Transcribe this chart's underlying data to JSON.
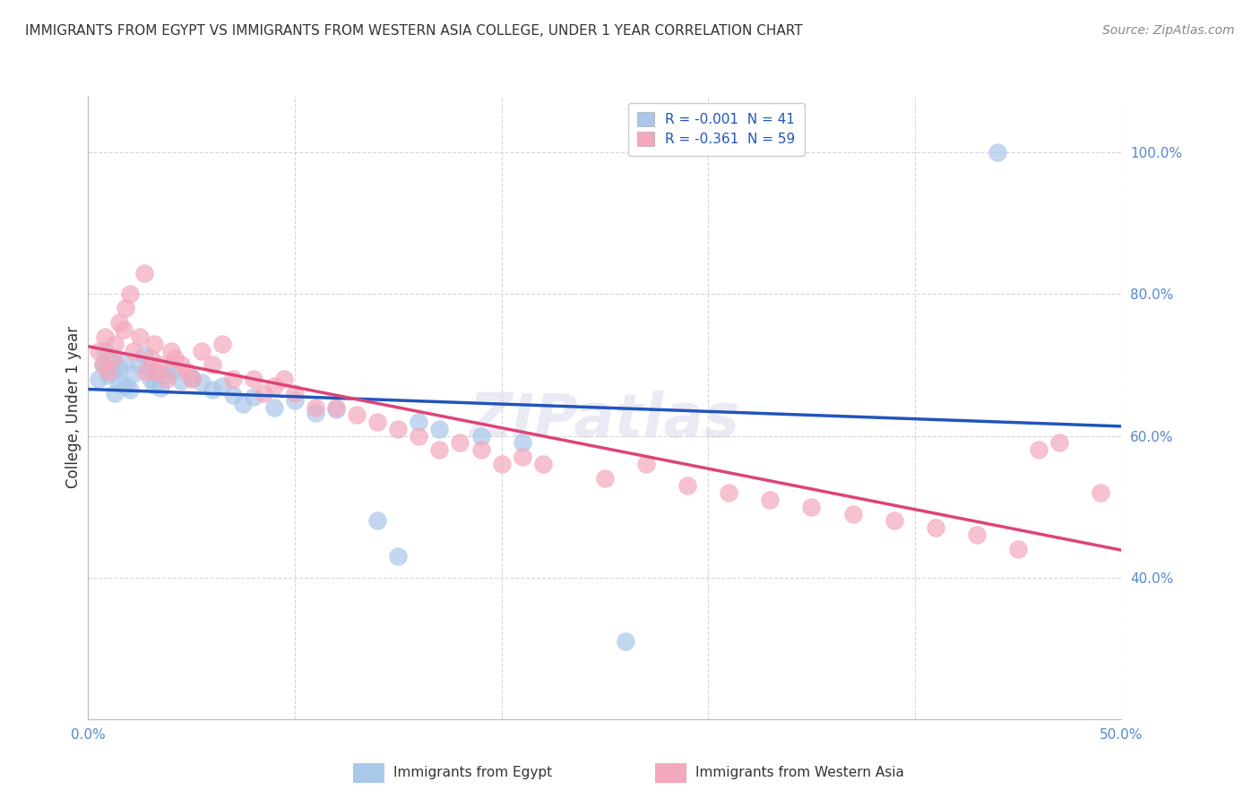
{
  "title": "IMMIGRANTS FROM EGYPT VS IMMIGRANTS FROM WESTERN ASIA COLLEGE, UNDER 1 YEAR CORRELATION CHART",
  "source": "Source: ZipAtlas.com",
  "ylabel": "College, Under 1 year",
  "legend_egypt": "R = -0.001  N = 41",
  "legend_western_asia": "R = -0.361  N = 59",
  "legend_label_egypt": "Immigrants from Egypt",
  "legend_label_western_asia": "Immigrants from Western Asia",
  "color_egypt": "#aac8ea",
  "color_western_asia": "#f4a8bc",
  "color_trend_egypt": "#2255bb",
  "color_trend_western_asia": "#dd4477",
  "xlim": [
    0.0,
    0.5
  ],
  "ylim": [
    0.2,
    1.08
  ],
  "background_color": "#ffffff",
  "grid_color": "#cccccc",
  "egypt_x": [
    0.005,
    0.007,
    0.008,
    0.01,
    0.01,
    0.012,
    0.013,
    0.015,
    0.015,
    0.017,
    0.018,
    0.02,
    0.022,
    0.025,
    0.027,
    0.03,
    0.03,
    0.032,
    0.035,
    0.038,
    0.04,
    0.045,
    0.05,
    0.055,
    0.06,
    0.065,
    0.07,
    0.075,
    0.08,
    0.09,
    0.1,
    0.11,
    0.12,
    0.14,
    0.15,
    0.16,
    0.17,
    0.19,
    0.21,
    0.26,
    0.44
  ],
  "egypt_y": [
    0.68,
    0.7,
    0.72,
    0.685,
    0.71,
    0.69,
    0.66,
    0.675,
    0.695,
    0.705,
    0.67,
    0.665,
    0.688,
    0.7,
    0.715,
    0.68,
    0.695,
    0.672,
    0.668,
    0.685,
    0.692,
    0.678,
    0.682,
    0.675,
    0.665,
    0.67,
    0.658,
    0.645,
    0.655,
    0.64,
    0.65,
    0.632,
    0.638,
    0.48,
    0.43,
    0.62,
    0.61,
    0.6,
    0.59,
    0.31,
    1.0
  ],
  "western_asia_x": [
    0.005,
    0.007,
    0.008,
    0.01,
    0.012,
    0.013,
    0.015,
    0.017,
    0.018,
    0.02,
    0.022,
    0.025,
    0.027,
    0.028,
    0.03,
    0.032,
    0.033,
    0.035,
    0.038,
    0.04,
    0.042,
    0.045,
    0.048,
    0.05,
    0.055,
    0.06,
    0.065,
    0.07,
    0.08,
    0.085,
    0.09,
    0.095,
    0.1,
    0.11,
    0.12,
    0.13,
    0.14,
    0.15,
    0.16,
    0.17,
    0.18,
    0.19,
    0.2,
    0.21,
    0.22,
    0.25,
    0.27,
    0.29,
    0.31,
    0.33,
    0.35,
    0.37,
    0.39,
    0.41,
    0.43,
    0.45,
    0.46,
    0.47,
    0.49
  ],
  "western_asia_y": [
    0.72,
    0.7,
    0.74,
    0.69,
    0.71,
    0.73,
    0.76,
    0.75,
    0.78,
    0.8,
    0.72,
    0.74,
    0.83,
    0.69,
    0.71,
    0.73,
    0.69,
    0.7,
    0.68,
    0.72,
    0.71,
    0.7,
    0.69,
    0.68,
    0.72,
    0.7,
    0.73,
    0.68,
    0.68,
    0.66,
    0.67,
    0.68,
    0.66,
    0.64,
    0.64,
    0.63,
    0.62,
    0.61,
    0.6,
    0.58,
    0.59,
    0.58,
    0.56,
    0.57,
    0.56,
    0.54,
    0.56,
    0.53,
    0.52,
    0.51,
    0.5,
    0.49,
    0.48,
    0.47,
    0.46,
    0.44,
    0.58,
    0.59,
    0.52
  ]
}
